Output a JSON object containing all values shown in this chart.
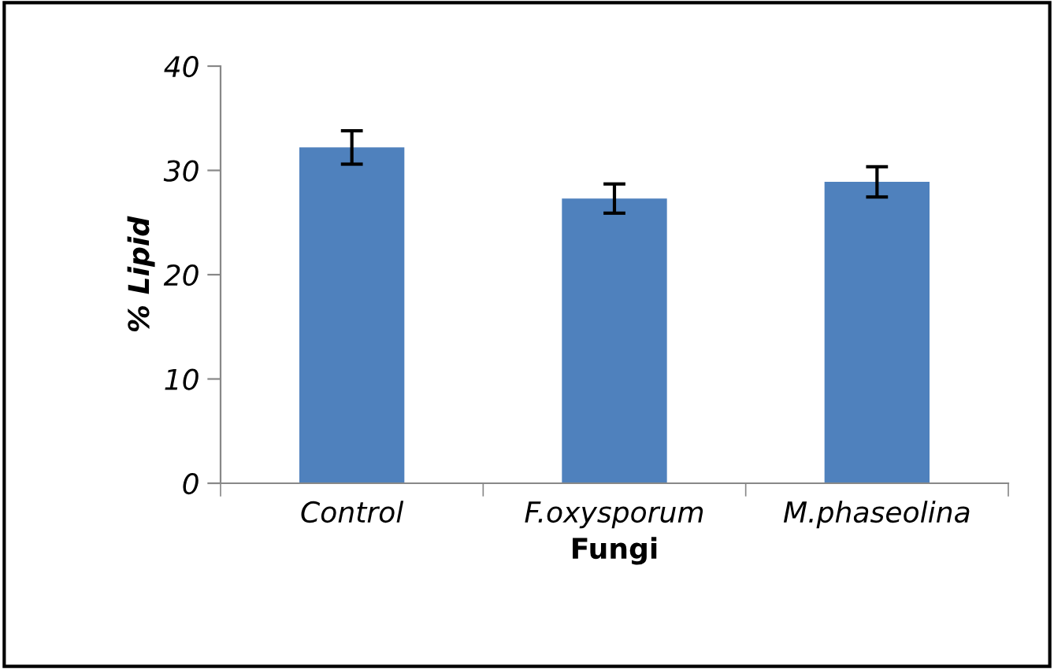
{
  "chart_data": {
    "type": "bar",
    "xlabel": "Fungi",
    "ylabel": "% Lipid",
    "categories": [
      "Control",
      "F.oxysporum",
      "M.phaseolina"
    ],
    "values": [
      32.2,
      27.3,
      28.9
    ],
    "errors": [
      1.6,
      1.4,
      1.45
    ],
    "color": "#4f81bd",
    "ylim": [
      0,
      40
    ],
    "yticks": [
      0,
      10,
      20,
      30,
      40
    ],
    "grid": false,
    "legend": false
  }
}
